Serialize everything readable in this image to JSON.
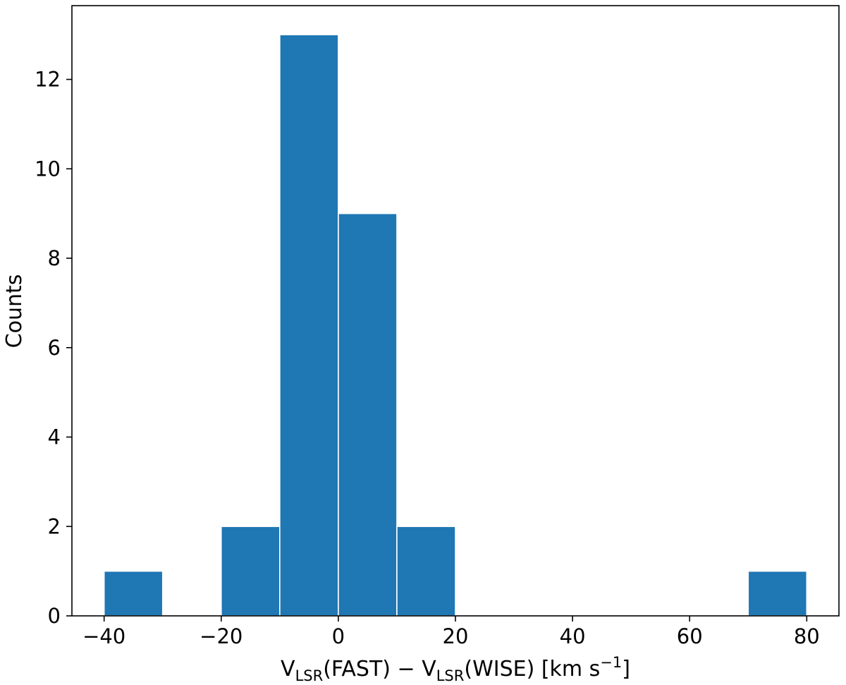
{
  "chart_data": {
    "type": "bar",
    "title": "",
    "xlabel": {
      "prefix": "V",
      "prefix_sub": "LSR",
      "mid": "(FAST) − V",
      "mid_sub": "LSR",
      "tail": "(WISE)  [km s",
      "tail_sup": "−1",
      "end": "]"
    },
    "ylabel": "Counts",
    "xlim": [
      -45.5,
      85.5
    ],
    "ylim": [
      0,
      13.65
    ],
    "xticks": [
      -40,
      -20,
      0,
      20,
      40,
      60,
      80
    ],
    "xtick_labels": [
      "−40",
      "−20",
      "0",
      "20",
      "40",
      "60",
      "80"
    ],
    "yticks": [
      0,
      2,
      4,
      6,
      8,
      10,
      12
    ],
    "ytick_labels": [
      "0",
      "2",
      "4",
      "6",
      "8",
      "10",
      "12"
    ],
    "bins": [
      {
        "x0": -40,
        "x1": -30,
        "count": 1
      },
      {
        "x0": -20,
        "x1": -10,
        "count": 2
      },
      {
        "x0": -10,
        "x1": 0,
        "count": 13
      },
      {
        "x0": 0,
        "x1": 10,
        "count": 9
      },
      {
        "x0": 10,
        "x1": 20,
        "count": 2
      },
      {
        "x0": 70,
        "x1": 80,
        "count": 1
      }
    ],
    "bar_color": "#1f77b4",
    "edge_color": "#ffffff",
    "grid": false
  }
}
